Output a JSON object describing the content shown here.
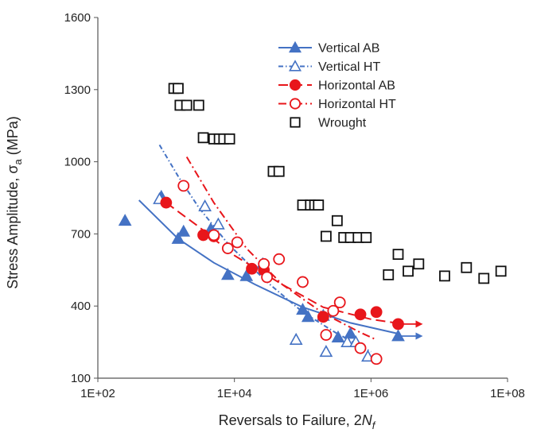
{
  "chart_data": {
    "type": "scatter",
    "title": "",
    "xlabel": "Reversals to Failure, 2",
    "xlabel_italic": "N",
    "xlabel_sub": "f",
    "ylabel": "Stress Amplitude, σ",
    "ylabel_sub": "a",
    "ylabel_unit": " (MPa)",
    "xscale": "log",
    "xlim": [
      100,
      100000000
    ],
    "ylim": [
      100,
      1600
    ],
    "x_ticks": [
      100,
      10000,
      1000000,
      100000000
    ],
    "x_tick_labels": [
      "1E+02",
      "1E+04",
      "1E+06",
      "1E+08"
    ],
    "y_ticks": [
      100,
      400,
      700,
      1000,
      1300,
      1600
    ],
    "y_tick_labels": [
      "100",
      "400",
      "700",
      "1000",
      "1300",
      "1600"
    ],
    "grid": false,
    "legend_position": "top-right",
    "colors": {
      "blue": "#4472C4",
      "red": "#E8161B",
      "black": "#111111"
    },
    "series": [
      {
        "name": "Vertical AB",
        "marker": "triangle-filled",
        "color": "#4472C4",
        "points": [
          [
            250,
            755
          ],
          [
            850,
            855
          ],
          [
            1500,
            680
          ],
          [
            1800,
            710
          ],
          [
            4500,
            720
          ],
          [
            8000,
            530
          ],
          [
            15000,
            525
          ],
          [
            26000,
            575
          ],
          [
            100000,
            385
          ],
          [
            120000,
            355
          ],
          [
            200000,
            360
          ],
          [
            330000,
            270
          ],
          [
            500000,
            285
          ],
          [
            2500000,
            275
          ]
        ],
        "runouts": [
          [
            2500000,
            275
          ]
        ],
        "fit": [
          [
            400,
            840
          ],
          [
            1500,
            680
          ],
          [
            5000,
            580
          ],
          [
            20000,
            490
          ],
          [
            100000,
            395
          ],
          [
            500000,
            330
          ],
          [
            2500000,
            285
          ]
        ]
      },
      {
        "name": "Vertical HT",
        "marker": "triangle-open",
        "color": "#4472C4",
        "points": [
          [
            800,
            845
          ],
          [
            3700,
            815
          ],
          [
            5800,
            740
          ],
          [
            80000,
            260
          ],
          [
            220000,
            210
          ],
          [
            450000,
            250
          ],
          [
            600000,
            250
          ],
          [
            900000,
            190
          ]
        ],
        "runouts": [],
        "fit": [
          [
            800,
            1070
          ],
          [
            1500,
            940
          ],
          [
            3000,
            810
          ],
          [
            8000,
            660
          ],
          [
            30000,
            500
          ],
          [
            100000,
            375
          ],
          [
            300000,
            290
          ],
          [
            1000000,
            210
          ]
        ]
      },
      {
        "name": "Horizontal AB",
        "marker": "circle-filled",
        "color": "#E8161B",
        "points": [
          [
            1000,
            830
          ],
          [
            3500,
            695
          ],
          [
            5000,
            690
          ],
          [
            18000,
            555
          ],
          [
            27000,
            550
          ],
          [
            200000,
            355
          ],
          [
            700000,
            365
          ],
          [
            1200000,
            375
          ],
          [
            2500000,
            325
          ]
        ],
        "runouts": [
          [
            2500000,
            325
          ]
        ],
        "fit": [
          [
            1000,
            830
          ],
          [
            3000,
            730
          ],
          [
            10000,
            610
          ],
          [
            50000,
            490
          ],
          [
            200000,
            395
          ],
          [
            1000000,
            345
          ],
          [
            3000000,
            325
          ]
        ]
      },
      {
        "name": "Horizontal HT",
        "marker": "circle-open",
        "color": "#E8161B",
        "points": [
          [
            1800,
            900
          ],
          [
            5000,
            695
          ],
          [
            8000,
            640
          ],
          [
            11000,
            665
          ],
          [
            27000,
            575
          ],
          [
            30000,
            520
          ],
          [
            45000,
            595
          ],
          [
            100000,
            500
          ],
          [
            220000,
            280
          ],
          [
            280000,
            380
          ],
          [
            350000,
            415
          ],
          [
            700000,
            225
          ],
          [
            1200000,
            180
          ]
        ],
        "runouts": [],
        "fit": [
          [
            2000,
            1020
          ],
          [
            5000,
            830
          ],
          [
            15000,
            640
          ],
          [
            50000,
            490
          ],
          [
            200000,
            370
          ],
          [
            700000,
            290
          ],
          [
            1200000,
            260
          ]
        ]
      },
      {
        "name": "Wrought",
        "marker": "square-open",
        "color": "#111111",
        "points": [
          [
            1300,
            1305
          ],
          [
            1500,
            1305
          ],
          [
            1600,
            1235
          ],
          [
            2000,
            1235
          ],
          [
            3000,
            1235
          ],
          [
            3500,
            1100
          ],
          [
            5000,
            1095
          ],
          [
            6000,
            1095
          ],
          [
            7000,
            1095
          ],
          [
            8500,
            1095
          ],
          [
            37000,
            960
          ],
          [
            45000,
            960
          ],
          [
            100000,
            820
          ],
          [
            130000,
            820
          ],
          [
            150000,
            820
          ],
          [
            170000,
            820
          ],
          [
            220000,
            690
          ],
          [
            320000,
            755
          ],
          [
            400000,
            685
          ],
          [
            500000,
            685
          ],
          [
            650000,
            685
          ],
          [
            850000,
            685
          ],
          [
            1800000,
            530
          ],
          [
            2500000,
            615
          ],
          [
            3500000,
            545
          ],
          [
            5000000,
            575
          ],
          [
            12000000,
            525
          ],
          [
            25000000,
            560
          ],
          [
            45000000,
            515
          ],
          [
            80000000,
            545
          ]
        ],
        "runouts": [],
        "fit": []
      }
    ]
  }
}
